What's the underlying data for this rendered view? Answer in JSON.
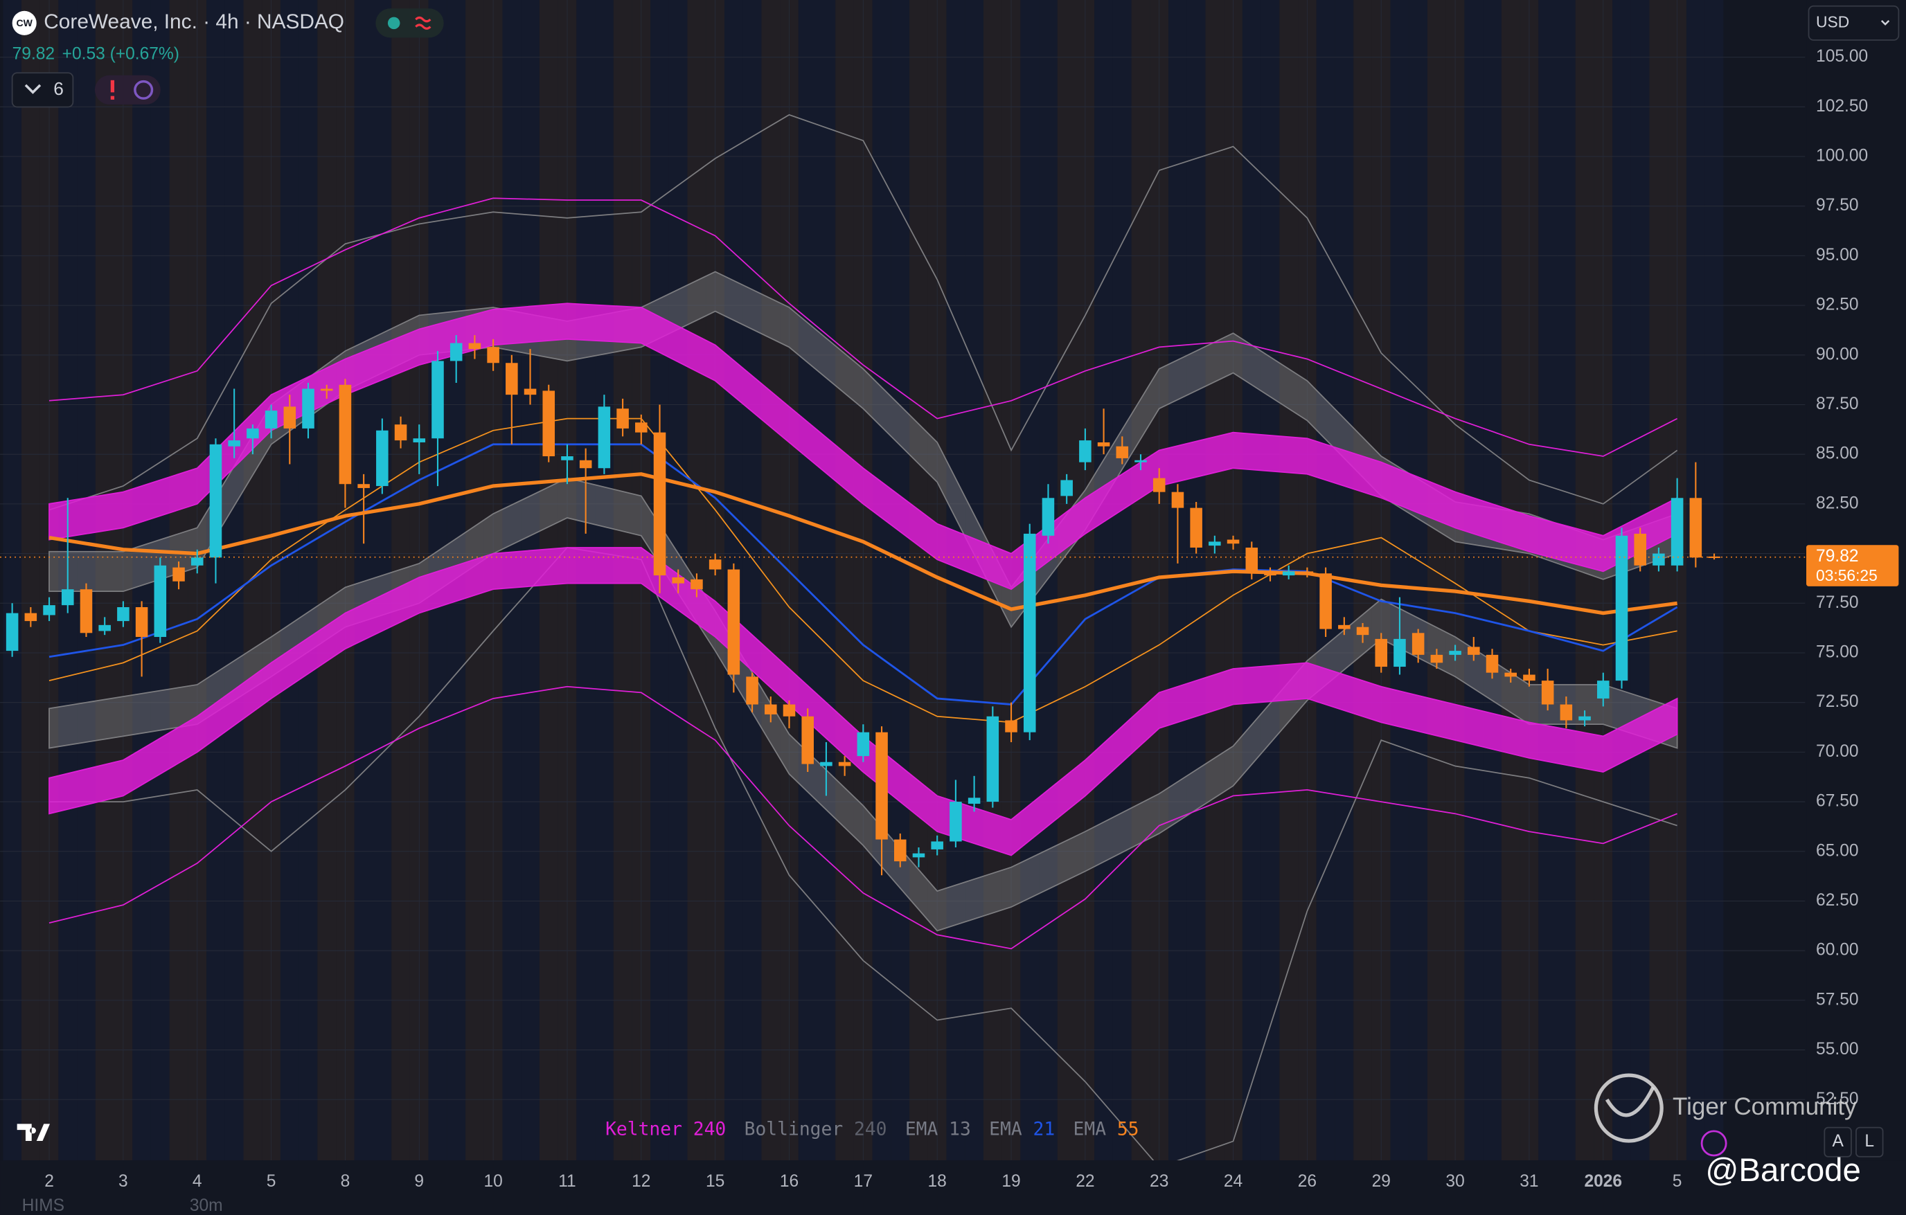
{
  "chart_data": {
    "type": "candlestick",
    "title": "CoreWeave, Inc. · 4h · NASDAQ",
    "x_labels": [
      "2",
      "3",
      "4",
      "5",
      "8",
      "9",
      "10",
      "11",
      "12",
      "15",
      "16",
      "17",
      "18",
      "19",
      "22",
      "23",
      "24",
      "26",
      "29",
      "30",
      "31",
      "2026",
      "5"
    ],
    "open": [
      75.1,
      77.0,
      76.9,
      77.4,
      78.2,
      76.1,
      76.6,
      77.3,
      75.8,
      79.3,
      79.4,
      79.8,
      85.4,
      85.8,
      86.3,
      87.4,
      86.3,
      88.3,
      88.5,
      83.5,
      83.4,
      86.5,
      85.6,
      85.8,
      89.7,
      90.6,
      90.4,
      89.6,
      88.3,
      88.2,
      84.7,
      84.7,
      84.3,
      87.3,
      86.6,
      86.1,
      78.8,
      78.7,
      79.7,
      79.2,
      73.8,
      72.4,
      72.4,
      71.8,
      69.3,
      69.5,
      69.8,
      71.0,
      65.6,
      64.7,
      65.1,
      65.5,
      67.4,
      67.5,
      71.6,
      71.0,
      80.9,
      82.9,
      84.6,
      85.6,
      85.4,
      84.6,
      83.8,
      83.1,
      82.3,
      80.4,
      80.7,
      80.3,
      79.1,
      78.9,
      79.1,
      79.0,
      76.4,
      76.3,
      75.7,
      74.3,
      76.0,
      74.9,
      74.9,
      75.3,
      74.9,
      74.0,
      73.9,
      73.6,
      72.4,
      71.6,
      72.7,
      73.6,
      81.0,
      79.4,
      79.4,
      82.8,
      79.85
    ],
    "high": [
      77.5,
      77.3,
      77.8,
      82.8,
      78.5,
      76.8,
      77.6,
      77.6,
      79.8,
      79.6,
      80.2,
      85.8,
      88.3,
      86.5,
      87.5,
      88.0,
      88.6,
      88.5,
      88.8,
      84.0,
      86.8,
      86.9,
      86.5,
      90.2,
      91.0,
      91.0,
      90.8,
      90.0,
      90.3,
      88.5,
      85.5,
      85.3,
      88.0,
      87.8,
      87.0,
      87.5,
      79.2,
      79.0,
      80.0,
      79.5,
      74.0,
      72.8,
      72.6,
      72.2,
      70.5,
      69.8,
      71.4,
      71.3,
      65.9,
      65.2,
      65.8,
      68.6,
      68.8,
      72.3,
      72.5,
      81.5,
      83.5,
      84.0,
      86.3,
      87.3,
      85.9,
      85.0,
      84.3,
      83.5,
      82.6,
      80.9,
      80.9,
      80.6,
      79.3,
      79.4,
      79.3,
      79.3,
      76.8,
      76.5,
      76.0,
      77.8,
      76.2,
      75.2,
      75.4,
      75.8,
      75.2,
      74.2,
      74.2,
      74.2,
      72.8,
      72.1,
      74.0,
      81.3,
      81.3,
      80.3,
      83.8,
      84.6,
      80.0
    ],
    "low": [
      74.8,
      76.3,
      76.6,
      77.0,
      75.8,
      75.9,
      76.3,
      73.8,
      75.5,
      78.2,
      79.0,
      78.5,
      84.8,
      85.0,
      85.8,
      84.5,
      85.8,
      87.8,
      82.3,
      80.5,
      83.0,
      85.3,
      84.0,
      83.4,
      88.6,
      89.8,
      89.2,
      85.5,
      87.5,
      84.6,
      83.5,
      81.0,
      84.0,
      85.9,
      85.5,
      78.0,
      78.0,
      77.8,
      78.9,
      73.0,
      72.0,
      71.5,
      71.2,
      69.0,
      67.8,
      68.8,
      69.5,
      63.8,
      64.2,
      64.2,
      64.8,
      65.2,
      67.0,
      67.2,
      70.5,
      70.6,
      80.5,
      82.5,
      84.2,
      85.0,
      84.5,
      84.2,
      82.5,
      79.5,
      80.0,
      80.0,
      80.2,
      78.7,
      78.6,
      78.7,
      78.8,
      75.8,
      75.9,
      75.5,
      74.0,
      73.9,
      74.5,
      74.2,
      74.6,
      74.6,
      73.7,
      73.5,
      73.3,
      72.1,
      71.2,
      71.3,
      72.3,
      73.2,
      79.1,
      79.1,
      79.1,
      79.3,
      79.7
    ],
    "close": [
      77.0,
      76.6,
      77.4,
      78.2,
      76.0,
      76.4,
      77.3,
      75.8,
      79.4,
      78.6,
      79.8,
      85.5,
      85.7,
      86.3,
      87.2,
      86.3,
      88.3,
      88.2,
      83.5,
      83.3,
      86.2,
      85.7,
      85.8,
      89.7,
      90.6,
      90.3,
      89.6,
      88.0,
      88.0,
      84.9,
      84.9,
      84.3,
      87.4,
      86.3,
      86.1,
      78.9,
      78.5,
      78.2,
      79.2,
      73.9,
      72.4,
      71.9,
      71.8,
      69.4,
      69.5,
      69.3,
      71.0,
      65.6,
      64.5,
      64.9,
      65.5,
      67.5,
      67.7,
      71.8,
      71.0,
      81.0,
      82.8,
      83.7,
      85.7,
      85.4,
      84.8,
      84.7,
      83.1,
      82.3,
      80.3,
      80.6,
      80.5,
      79.1,
      78.9,
      79.1,
      79.0,
      76.2,
      76.2,
      75.9,
      74.3,
      75.7,
      74.9,
      74.5,
      75.1,
      74.9,
      74.0,
      73.8,
      73.6,
      72.4,
      71.6,
      71.8,
      73.6,
      80.9,
      79.4,
      80.0,
      82.8,
      79.8,
      79.82
    ],
    "up_color": "#22c1d6",
    "down_color": "#f7841f",
    "overlays": [
      {
        "name": "Keltner",
        "length": 240,
        "color": "#e01fd8",
        "bands": [
          {
            "upper": [
              82.5,
              83.1,
              84.3,
              88.0,
              89.8,
              91.3,
              92.3,
              92.6,
              92.4,
              90.5,
              87.4,
              84.3,
              81.5,
              80.0,
              82.8,
              85.2,
              86.1,
              85.8,
              84.6,
              83.1,
              81.9,
              80.9,
              82.8
            ],
            "lower": [
              80.7,
              81.3,
              82.5,
              86.2,
              88.0,
              89.5,
              90.5,
              90.8,
              90.6,
              88.7,
              85.6,
              82.5,
              79.7,
              78.2,
              81.0,
              83.4,
              84.3,
              84.0,
              82.8,
              81.3,
              80.1,
              79.1,
              81.0
            ]
          },
          {
            "upper": [
              68.7,
              69.6,
              71.8,
              74.5,
              77.0,
              78.8,
              80.0,
              80.3,
              80.3,
              77.6,
              74.2,
              70.8,
              67.8,
              66.6,
              69.6,
              73.0,
              74.2,
              74.5,
              73.3,
              72.4,
              71.5,
              70.8,
              72.7
            ],
            "lower": [
              66.9,
              67.8,
              70.0,
              72.7,
              75.2,
              77.0,
              78.2,
              78.5,
              78.5,
              75.8,
              72.4,
              69.0,
              66.0,
              64.8,
              67.8,
              71.2,
              72.4,
              72.7,
              71.5,
              70.6,
              69.7,
              69.0,
              70.9
            ]
          }
        ],
        "lines": [
          [
            87.7,
            88.0,
            89.2,
            93.5,
            95.3,
            96.9,
            97.9,
            97.8,
            97.8,
            96.0,
            92.6,
            89.5,
            86.8,
            87.7,
            89.2,
            90.4,
            90.7,
            89.8,
            88.3,
            86.8,
            85.5,
            84.9,
            86.8
          ],
          [
            61.4,
            62.3,
            64.4,
            67.5,
            69.3,
            71.2,
            72.7,
            73.3,
            73.0,
            70.6,
            66.3,
            62.9,
            60.8,
            60.1,
            62.6,
            66.3,
            67.8,
            68.1,
            67.5,
            66.9,
            66.0,
            65.4,
            66.9
          ]
        ]
      },
      {
        "name": "Bollinger",
        "length": 240,
        "color": "#7d7d80",
        "bands": [
          {
            "upper": [
              80.1,
              80.1,
              81.3,
              87.5,
              90.2,
              92.0,
              92.4,
              91.7,
              92.4,
              94.2,
              92.4,
              89.3,
              85.6,
              78.3,
              83.2,
              89.3,
              91.1,
              88.7,
              84.9,
              82.6,
              82.0,
              80.7,
              82.0
            ],
            "lower": [
              78.1,
              78.1,
              79.3,
              85.5,
              88.2,
              90.0,
              90.4,
              89.7,
              90.4,
              92.2,
              90.4,
              87.3,
              83.6,
              76.3,
              81.2,
              87.3,
              89.1,
              86.7,
              82.9,
              80.6,
              80.0,
              78.7,
              80.0
            ]
          },
          {
            "upper": [
              72.2,
              72.8,
              73.4,
              75.8,
              78.3,
              79.5,
              82.0,
              83.8,
              82.9,
              77.1,
              70.9,
              67.3,
              63.0,
              64.2,
              66.0,
              67.9,
              70.3,
              74.6,
              77.7,
              75.8,
              73.4,
              73.4,
              72.2
            ],
            "lower": [
              70.2,
              70.8,
              71.4,
              73.8,
              76.3,
              77.5,
              80.0,
              81.8,
              80.9,
              75.1,
              68.9,
              65.3,
              61.0,
              62.2,
              64.0,
              65.9,
              68.3,
              72.6,
              75.7,
              73.8,
              71.4,
              71.4,
              70.2
            ]
          }
        ],
        "lines": [
          [
            82.2,
            83.4,
            85.8,
            92.6,
            95.6,
            96.6,
            97.2,
            96.9,
            97.2,
            99.9,
            102.1,
            100.8,
            93.8,
            85.2,
            92.0,
            99.3,
            100.5,
            96.9,
            90.1,
            86.5,
            83.7,
            82.5,
            85.2
          ],
          [
            67.5,
            67.5,
            68.1,
            65.0,
            68.1,
            71.8,
            76.1,
            80.3,
            79.7,
            71.2,
            63.8,
            59.5,
            56.5,
            57.1,
            53.4,
            49.1,
            50.4,
            62.0,
            70.6,
            69.3,
            68.7,
            67.5,
            66.3
          ]
        ]
      },
      {
        "name": "EMA",
        "length": 13,
        "color": "#f7931e",
        "line_width": 1,
        "values": [
          73.6,
          74.5,
          76.1,
          79.7,
          82.2,
          84.6,
          86.2,
          86.8,
          86.8,
          82.2,
          77.3,
          73.6,
          71.8,
          71.5,
          73.3,
          75.4,
          77.9,
          80.0,
          80.8,
          78.5,
          76.1,
          75.4,
          76.1
        ]
      },
      {
        "name": "EMA",
        "length": 21,
        "color": "#1f55e8",
        "line_width": 1.6,
        "values": [
          74.8,
          75.4,
          76.7,
          79.4,
          81.6,
          83.7,
          85.5,
          85.5,
          85.5,
          82.8,
          79.1,
          75.4,
          72.7,
          72.4,
          76.7,
          78.8,
          79.2,
          79.1,
          77.6,
          77.0,
          76.1,
          75.1,
          77.3
        ]
      },
      {
        "name": "EMA",
        "length": 55,
        "color": "#f7841f",
        "line_width": 3,
        "values": [
          80.8,
          80.2,
          80.0,
          80.9,
          81.9,
          82.5,
          83.4,
          83.7,
          84.0,
          83.1,
          81.9,
          80.6,
          78.8,
          77.2,
          77.9,
          78.8,
          79.1,
          79.0,
          78.4,
          78.1,
          77.6,
          77.0,
          77.5
        ]
      }
    ],
    "ylim": [
      49.44,
      107.88
    ],
    "yticks": [
      {
        "value": 52.5,
        "label": "52.50"
      },
      {
        "value": 55,
        "label": "55.00"
      },
      {
        "value": 57.5,
        "label": "57.50"
      },
      {
        "value": 60,
        "label": "60.00"
      },
      {
        "value": 62.5,
        "label": "62.50"
      },
      {
        "value": 65,
        "label": "65.00"
      },
      {
        "value": 67.5,
        "label": "67.50"
      },
      {
        "value": 70,
        "label": "70.00"
      },
      {
        "value": 72.5,
        "label": "72.50"
      },
      {
        "value": 75,
        "label": "75.00"
      },
      {
        "value": 77.5,
        "label": "77.50"
      },
      {
        "value": 80,
        "label": "80.00"
      },
      {
        "value": 82.5,
        "label": "82.50"
      },
      {
        "value": 85,
        "label": "85.00"
      },
      {
        "value": 87.5,
        "label": "87.50"
      },
      {
        "value": 90,
        "label": "90.00"
      },
      {
        "value": 92.5,
        "label": "92.50"
      },
      {
        "value": 95,
        "label": "95.00"
      },
      {
        "value": 97.5,
        "label": "97.50"
      },
      {
        "value": 100,
        "label": "100.00"
      },
      {
        "value": 102.5,
        "label": "102.50"
      },
      {
        "value": 105,
        "label": "105.00"
      }
    ],
    "grid": true,
    "last_price": 79.82,
    "countdown": "03:56:25"
  },
  "ui": {
    "logo": "CW",
    "change": "+0.53 (+0.67%)",
    "indicator_count": "6",
    "currency": "USD",
    "watermark": "Tiger Community",
    "handle": "@Barcode",
    "scale_buttons": [
      "A",
      "L"
    ],
    "bottom_symbol": "HIMS",
    "bottom_interval": "30m"
  }
}
